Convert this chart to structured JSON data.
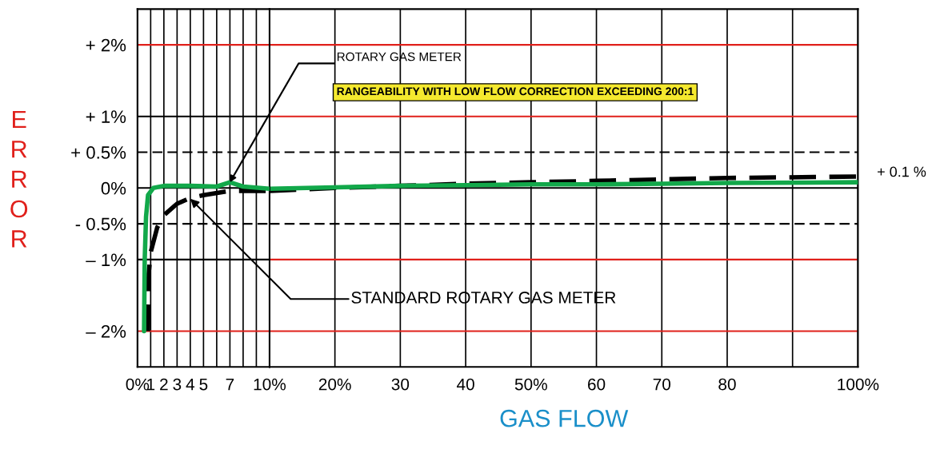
{
  "chart_data": [
    {
      "type": "line",
      "ylabel": "ERROR",
      "xlim": [
        0,
        10
      ],
      "ylim": [
        -2.5,
        2.5
      ],
      "xticks": [
        {
          "value": 0,
          "label": "0%"
        },
        {
          "value": 1,
          "label": "1"
        },
        {
          "value": 2,
          "label": "2"
        },
        {
          "value": 3,
          "label": "3"
        },
        {
          "value": 4,
          "label": "4"
        },
        {
          "value": 5,
          "label": "5"
        },
        {
          "value": 6,
          "label": null
        },
        {
          "value": 7,
          "label": "7"
        },
        {
          "value": 8,
          "label": null
        },
        {
          "value": 9,
          "label": null
        },
        {
          "value": 10,
          "label": "10%"
        }
      ],
      "yticks": [
        {
          "value": 2,
          "label": "+ 2%"
        },
        {
          "value": 1,
          "label": "+ 1%"
        },
        {
          "value": 0.5,
          "label": "+ 0.5%"
        },
        {
          "value": 0,
          "label": "0%"
        },
        {
          "value": -0.5,
          "label": "- 0.5%"
        },
        {
          "value": -1,
          "label": "– 1%"
        },
        {
          "value": -2,
          "label": "– 2%"
        }
      ],
      "grid": "x",
      "legend": false,
      "marker": "none",
      "ref_lines": [
        {
          "axis": "y",
          "value": 2,
          "color": "#e0201b"
        },
        {
          "axis": "y",
          "value": 1,
          "color": "#000000"
        },
        {
          "axis": "y",
          "value": 0,
          "color": "#000000"
        },
        {
          "axis": "y",
          "value": -1,
          "color": "#000000"
        },
        {
          "axis": "y",
          "value": -2,
          "color": "#e0201b"
        },
        {
          "axis": "y",
          "value": 0.5,
          "color": "#000000",
          "line_style": "dashed"
        },
        {
          "axis": "y",
          "value": -0.5,
          "color": "#000000",
          "line_style": "dashed"
        }
      ],
      "series": [
        {
          "color": "#000000",
          "line_style": "dashed",
          "x": [
            0.8,
            0.85,
            1,
            1.5,
            2,
            3,
            4,
            5,
            7,
            10
          ],
          "values": [
            -2,
            -1.2,
            -0.9,
            -0.55,
            -0.38,
            -0.22,
            -0.14,
            -0.1,
            -0.04,
            -0.04
          ]
        },
        {
          "color": "#12a84a",
          "line_style": "solid",
          "x": [
            0.5,
            0.55,
            0.65,
            0.8,
            1.2,
            2,
            4,
            6,
            7,
            8,
            10
          ],
          "values": [
            -2,
            -1.0,
            -0.4,
            -0.1,
            0,
            0.03,
            0.03,
            0.02,
            0.08,
            0.02,
            -0.01
          ]
        }
      ],
      "annotations": [
        {
          "text": "ROTARY GAS METER",
          "x": 7,
          "y": 0.08
        },
        "RANGEABILITY WITH LOW FLOW CORRECTION EXCEEDING 200:1",
        {
          "text": "STANDARD ROTARY GAS METER",
          "x": 4,
          "y": -0.15
        }
      ]
    },
    {
      "type": "line",
      "xlabel": "GAS FLOW",
      "xlim": [
        10,
        100
      ],
      "ylim": [
        -2.5,
        2.5
      ],
      "xticks": [
        {
          "value": 20,
          "label": "20%"
        },
        30,
        40,
        {
          "value": 50,
          "label": "50%"
        },
        60,
        70,
        80,
        {
          "value": 90,
          "label": null
        },
        {
          "value": 100,
          "label": "100%"
        }
      ],
      "tick_labels": "x",
      "grid": "x",
      "legend": false,
      "marker": "none",
      "ref_lines": [
        {
          "axis": "y",
          "value": 2,
          "color": "#e0201b"
        },
        {
          "axis": "y",
          "value": 1,
          "color": "#e0201b"
        },
        {
          "axis": "y",
          "value": 0,
          "color": "#000000"
        },
        {
          "axis": "y",
          "value": -1,
          "color": "#e0201b"
        },
        {
          "axis": "y",
          "value": -2,
          "color": "#e0201b"
        },
        {
          "axis": "y",
          "value": 0.5,
          "color": "#000000",
          "line_style": "dashed"
        },
        {
          "axis": "y",
          "value": -0.5,
          "color": "#000000",
          "line_style": "dashed"
        }
      ],
      "series": [
        {
          "color": "#000000",
          "line_style": "dashed",
          "x": [
            10,
            20,
            30,
            40,
            50,
            60,
            70,
            80,
            100
          ],
          "values": [
            -0.04,
            0,
            0.03,
            0.06,
            0.08,
            0.1,
            0.12,
            0.14,
            0.16
          ]
        },
        {
          "color": "#12a84a",
          "line_style": "solid",
          "x": [
            10,
            20,
            30,
            40,
            50,
            60,
            70,
            80,
            100
          ],
          "values": [
            -0.01,
            0.01,
            0.03,
            0.04,
            0.05,
            0.05,
            0.06,
            0.07,
            0.08
          ]
        }
      ],
      "annotations": [
        "+ 0.1 %"
      ]
    }
  ]
}
